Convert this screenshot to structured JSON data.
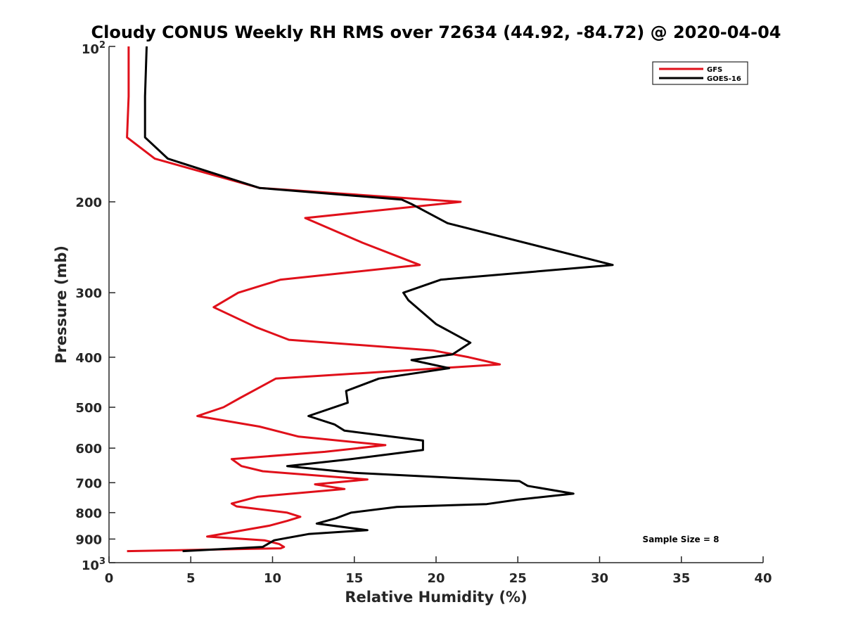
{
  "chart_data": {
    "type": "line",
    "title": "Cloudy CONUS Weekly RH RMS over 72634 (44.92, -84.72) @ 2020-04-04",
    "xlabel": "Relative Humidity (%)",
    "ylabel": "Pressure (mb)",
    "xlim": [
      0,
      40
    ],
    "ylim": [
      100,
      1000
    ],
    "yscale": "log",
    "y_reversed": true,
    "grid": false,
    "legend_position": "top-right",
    "x_ticks": [
      "0",
      "5",
      "10",
      "15",
      "20",
      "25",
      "30",
      "35",
      "40"
    ],
    "y_ticks": [
      {
        "value": 100,
        "base": "10",
        "exp": "2"
      },
      {
        "value": 200,
        "label": "200"
      },
      {
        "value": 300,
        "label": "300"
      },
      {
        "value": 400,
        "label": "400"
      },
      {
        "value": 500,
        "label": "500"
      },
      {
        "value": 600,
        "label": "600"
      },
      {
        "value": 700,
        "label": "700"
      },
      {
        "value": 800,
        "label": "800"
      },
      {
        "value": 900,
        "label": "900"
      },
      {
        "value": 1000,
        "base": "10",
        "exp": "3"
      }
    ],
    "series": [
      {
        "name": "GFS",
        "color": "#e0101a",
        "points": [
          [
            1.2,
            100
          ],
          [
            1.2,
            125
          ],
          [
            1.1,
            150
          ],
          [
            2.8,
            165
          ],
          [
            9.2,
            188
          ],
          [
            21.5,
            200
          ],
          [
            12.0,
            215
          ],
          [
            15.5,
            240
          ],
          [
            19.0,
            265
          ],
          [
            10.5,
            283
          ],
          [
            7.9,
            300
          ],
          [
            6.4,
            320
          ],
          [
            9.0,
            350
          ],
          [
            11.0,
            370
          ],
          [
            19.8,
            388
          ],
          [
            22.0,
            400
          ],
          [
            23.9,
            413
          ],
          [
            10.2,
            440
          ],
          [
            8.8,
            465
          ],
          [
            8.0,
            480
          ],
          [
            7.0,
            500
          ],
          [
            5.4,
            520
          ],
          [
            9.2,
            545
          ],
          [
            11.6,
            570
          ],
          [
            16.9,
            592
          ],
          [
            13.2,
            610
          ],
          [
            7.5,
            630
          ],
          [
            8.1,
            650
          ],
          [
            9.4,
            665
          ],
          [
            15.8,
            690
          ],
          [
            12.6,
            705
          ],
          [
            14.4,
            720
          ],
          [
            9.1,
            745
          ],
          [
            7.5,
            768
          ],
          [
            7.8,
            778
          ],
          [
            10.9,
            800
          ],
          [
            11.7,
            815
          ],
          [
            10.9,
            830
          ],
          [
            9.8,
            848
          ],
          [
            6.0,
            890
          ],
          [
            9.5,
            905
          ],
          [
            10.4,
            920
          ],
          [
            10.7,
            932
          ],
          [
            10.5,
            938
          ],
          [
            1.1,
            950
          ]
        ]
      },
      {
        "name": "GOES-16",
        "color": "#000000",
        "points": [
          [
            2.3,
            100
          ],
          [
            2.2,
            125
          ],
          [
            2.2,
            150
          ],
          [
            3.6,
            165
          ],
          [
            9.2,
            188
          ],
          [
            17.9,
            198
          ],
          [
            18.5,
            202
          ],
          [
            20.7,
            220
          ],
          [
            30.8,
            265
          ],
          [
            20.3,
            283
          ],
          [
            18.0,
            300
          ],
          [
            18.3,
            310
          ],
          [
            20.0,
            345
          ],
          [
            22.1,
            375
          ],
          [
            21.0,
            395
          ],
          [
            18.5,
            405
          ],
          [
            20.8,
            420
          ],
          [
            16.5,
            440
          ],
          [
            14.5,
            465
          ],
          [
            14.6,
            490
          ],
          [
            12.2,
            520
          ],
          [
            13.8,
            540
          ],
          [
            14.4,
            555
          ],
          [
            19.2,
            580
          ],
          [
            19.2,
            605
          ],
          [
            14.8,
            630
          ],
          [
            10.9,
            650
          ],
          [
            15.0,
            670
          ],
          [
            25.1,
            695
          ],
          [
            25.6,
            710
          ],
          [
            28.4,
            735
          ],
          [
            25.0,
            755
          ],
          [
            23.1,
            770
          ],
          [
            17.6,
            780
          ],
          [
            14.8,
            800
          ],
          [
            13.9,
            820
          ],
          [
            12.7,
            840
          ],
          [
            15.8,
            865
          ],
          [
            12.2,
            880
          ],
          [
            10.1,
            905
          ],
          [
            9.4,
            932
          ],
          [
            4.5,
            950
          ]
        ]
      }
    ],
    "legend": [
      "GFS",
      "GOES-16"
    ],
    "annotations": [
      "Sample Size = 8"
    ]
  }
}
